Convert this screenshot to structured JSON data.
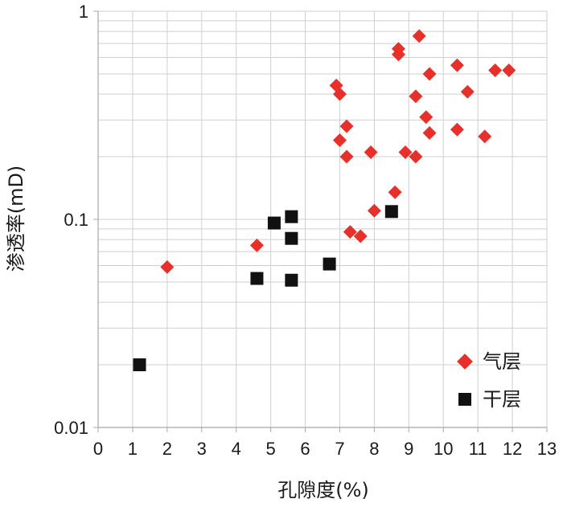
{
  "chart_data": {
    "type": "scatter",
    "title": "",
    "xlabel": "孔隙度(%)",
    "ylabel": "渗透率(mD)",
    "xlim": [
      0,
      13
    ],
    "ylim": [
      0.01,
      1
    ],
    "yscale": "log",
    "grid": true,
    "legend_position": "bottom-right",
    "x_ticks": [
      "0",
      "1",
      "2",
      "3",
      "4",
      "5",
      "6",
      "7",
      "8",
      "9",
      "10",
      "11",
      "12",
      "13"
    ],
    "y_ticks": [
      "1",
      "0.1",
      "0.01"
    ],
    "colors": {
      "gas": "#e8302a",
      "dry": "#111111",
      "grid": "#cfcfcf",
      "axis": "#a8a8a8"
    },
    "series": [
      {
        "name": "气层",
        "marker": "diamond",
        "points": [
          [
            2.0,
            0.059
          ],
          [
            4.6,
            0.075
          ],
          [
            6.9,
            0.44
          ],
          [
            7.0,
            0.4
          ],
          [
            7.0,
            0.24
          ],
          [
            7.2,
            0.28
          ],
          [
            7.2,
            0.2
          ],
          [
            7.3,
            0.087
          ],
          [
            7.6,
            0.083
          ],
          [
            7.9,
            0.21
          ],
          [
            8.0,
            0.11
          ],
          [
            8.6,
            0.135
          ],
          [
            8.7,
            0.62
          ],
          [
            8.7,
            0.66
          ],
          [
            8.9,
            0.21
          ],
          [
            9.2,
            0.2
          ],
          [
            9.2,
            0.39
          ],
          [
            9.3,
            0.76
          ],
          [
            9.5,
            0.31
          ],
          [
            9.6,
            0.26
          ],
          [
            9.6,
            0.5
          ],
          [
            10.4,
            0.55
          ],
          [
            10.4,
            0.27
          ],
          [
            10.7,
            0.41
          ],
          [
            11.2,
            0.25
          ],
          [
            11.5,
            0.52
          ],
          [
            11.9,
            0.52
          ]
        ]
      },
      {
        "name": "干层",
        "marker": "square",
        "points": [
          [
            1.2,
            0.02
          ],
          [
            4.6,
            0.052
          ],
          [
            5.1,
            0.096
          ],
          [
            5.6,
            0.103
          ],
          [
            5.6,
            0.081
          ],
          [
            5.6,
            0.051
          ],
          [
            6.7,
            0.061
          ],
          [
            8.5,
            0.109
          ]
        ]
      }
    ]
  }
}
